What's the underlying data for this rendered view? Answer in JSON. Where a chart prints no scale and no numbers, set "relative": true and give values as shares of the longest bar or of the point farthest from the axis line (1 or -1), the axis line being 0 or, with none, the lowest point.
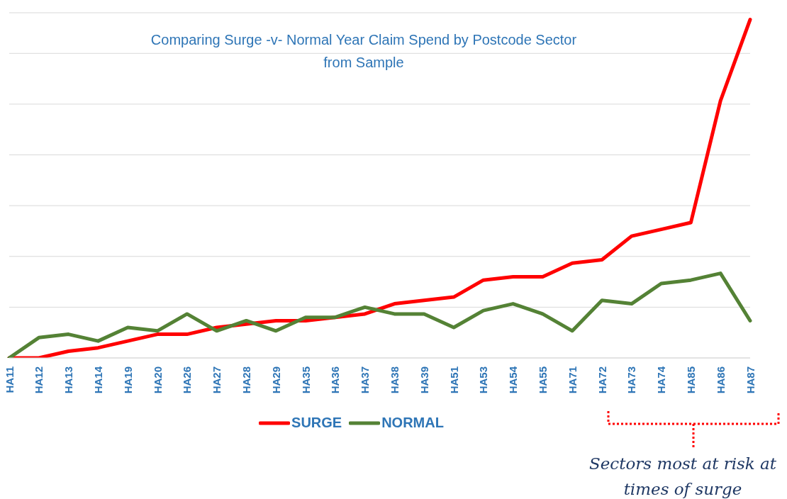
{
  "chart_data": {
    "type": "line",
    "title": "Comparing Surge -v- Normal Year Claim Spend by Postcode Sector\nfrom Sample",
    "relative": true,
    "grid": "y",
    "legend": "bottom",
    "marker": "none",
    "line_style": "solid",
    "categories": [
      "HA11",
      "HA12",
      "HA13",
      "HA14",
      "HA19",
      "HA20",
      "HA26",
      "HA27",
      "HA28",
      "HA29",
      "HA35",
      "HA36",
      "HA37",
      "HA38",
      "HA39",
      "HA51",
      "HA53",
      "HA54",
      "HA55",
      "HA71",
      "HA72",
      "HA73",
      "HA74",
      "HA85",
      "HA86",
      "HA87"
    ],
    "series": [
      {
        "name": "SURGE",
        "color": "#ff0000",
        "values": [
          0,
          0,
          0.02,
          0.03,
          0.05,
          0.07,
          0.07,
          0.09,
          0.1,
          0.11,
          0.11,
          0.12,
          0.13,
          0.16,
          0.17,
          0.18,
          0.23,
          0.24,
          0.24,
          0.28,
          0.29,
          0.36,
          0.38,
          0.4,
          0.76,
          1
        ]
      },
      {
        "name": "NORMAL",
        "color": "#548235",
        "values": [
          0,
          0.06,
          0.07,
          0.05,
          0.09,
          0.08,
          0.13,
          0.08,
          0.11,
          0.08,
          0.12,
          0.12,
          0.15,
          0.13,
          0.13,
          0.09,
          0.14,
          0.16,
          0.13,
          0.08,
          0.17,
          0.16,
          0.22,
          0.23,
          0.25,
          0.11
        ]
      }
    ],
    "annotations": [
      "Sectors most at risk at times of surge"
    ]
  }
}
